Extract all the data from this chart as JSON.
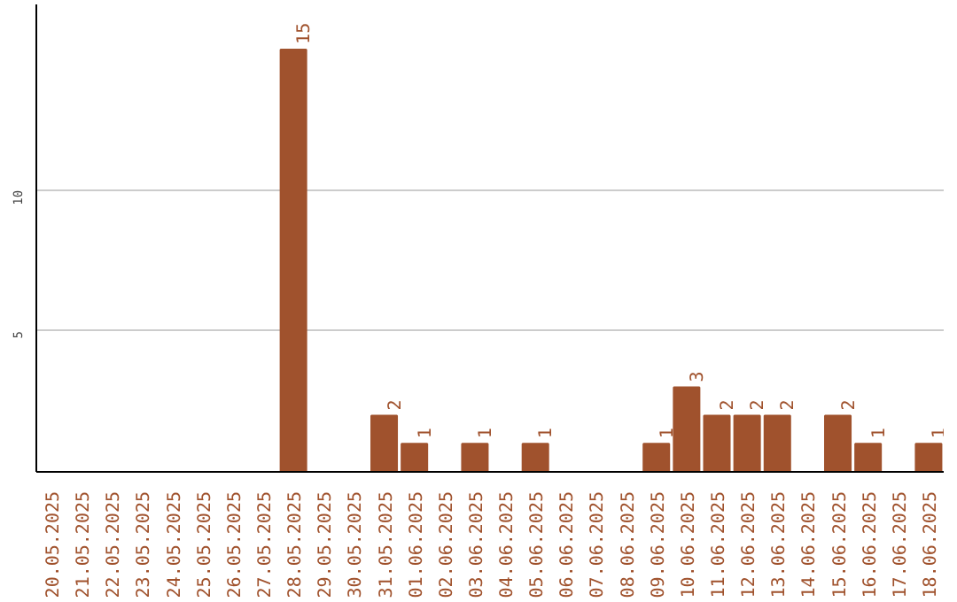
{
  "chart_data": {
    "type": "bar",
    "categories": [
      "20.05.2025",
      "21.05.2025",
      "22.05.2025",
      "23.05.2025",
      "24.05.2025",
      "25.05.2025",
      "26.05.2025",
      "27.05.2025",
      "28.05.2025",
      "29.05.2025",
      "30.05.2025",
      "31.05.2025",
      "01.06.2025",
      "02.06.2025",
      "03.06.2025",
      "04.06.2025",
      "05.06.2025",
      "06.06.2025",
      "07.06.2025",
      "08.06.2025",
      "09.06.2025",
      "10.06.2025",
      "11.06.2025",
      "12.06.2025",
      "13.06.2025",
      "14.06.2025",
      "15.06.2025",
      "16.06.2025",
      "17.06.2025",
      "18.06.2025"
    ],
    "values": [
      0,
      0,
      0,
      0,
      0,
      0,
      0,
      0,
      15,
      0,
      0,
      2,
      1,
      0,
      1,
      0,
      1,
      0,
      0,
      0,
      1,
      3,
      2,
      2,
      2,
      0,
      2,
      1,
      0,
      1
    ],
    "value_labels": [
      null,
      null,
      null,
      null,
      null,
      null,
      null,
      null,
      "15",
      null,
      null,
      "2",
      "1",
      null,
      "1",
      null,
      "1",
      null,
      null,
      null,
      "1",
      "3",
      "2",
      "2",
      "2",
      null,
      "2",
      "1",
      null,
      "1"
    ],
    "color": "#a0522d",
    "ylim": [
      0,
      16.6
    ],
    "yticks": [
      5,
      10
    ],
    "grid": "y"
  }
}
